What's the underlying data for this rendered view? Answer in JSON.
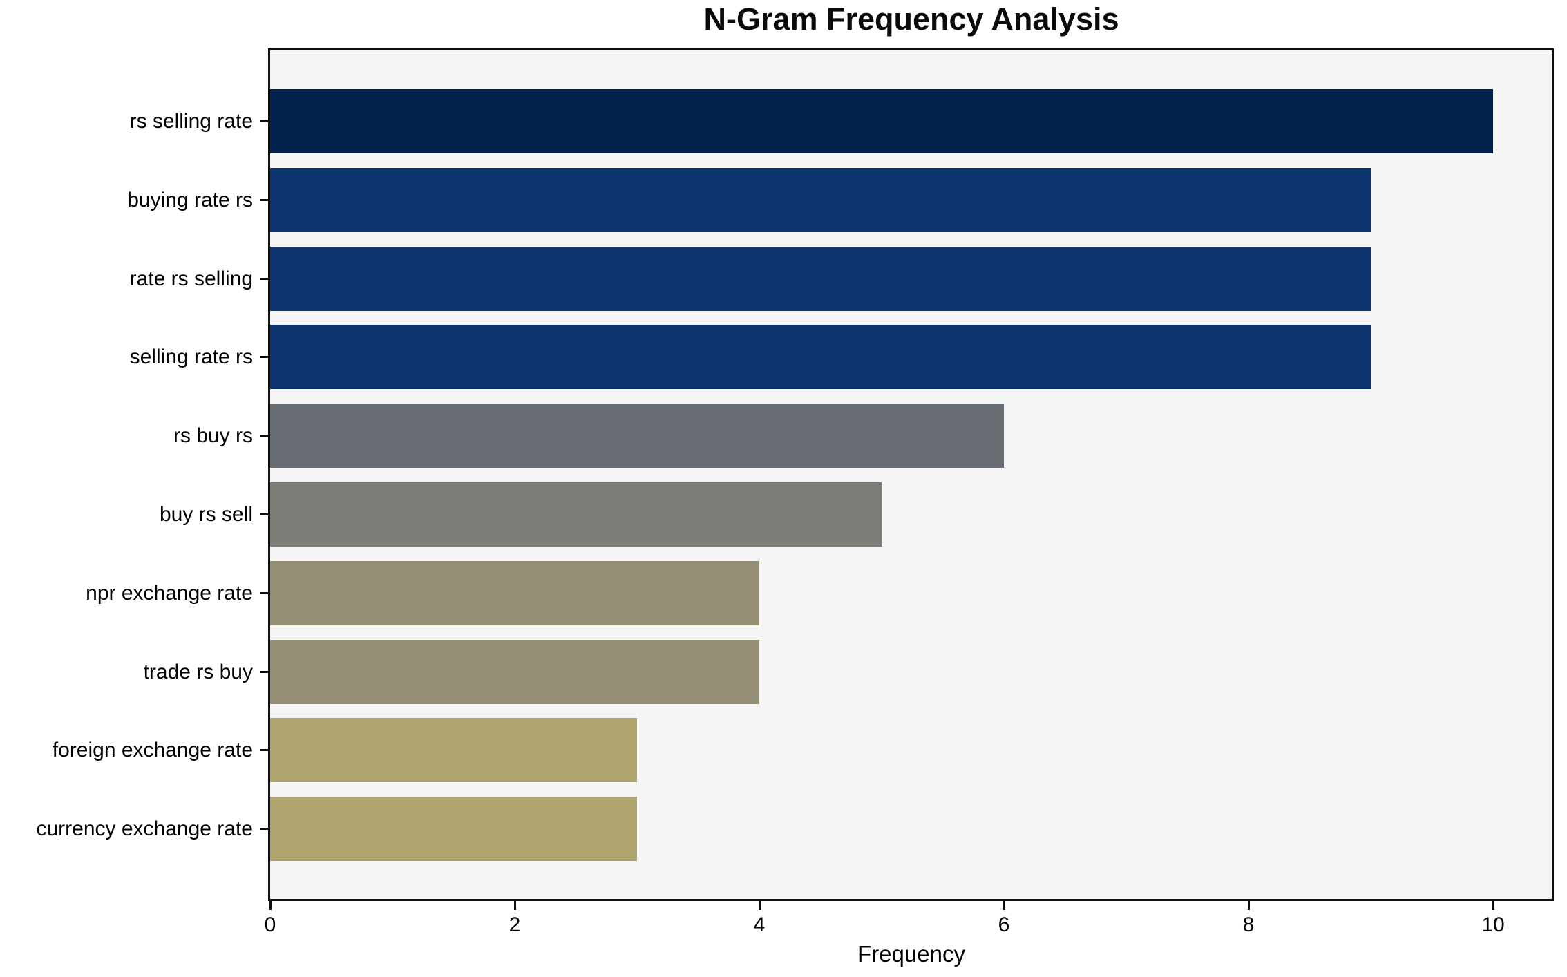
{
  "chart_data": {
    "type": "bar",
    "orientation": "horizontal",
    "title": "N-Gram Frequency Analysis",
    "xlabel": "Frequency",
    "ylabel": "",
    "categories": [
      "rs selling rate",
      "buying rate rs",
      "rate rs selling",
      "selling rate rs",
      "rs buy rs",
      "buy rs sell",
      "npr exchange rate",
      "trade rs buy",
      "foreign exchange rate",
      "currency exchange rate"
    ],
    "values": [
      10,
      9,
      9,
      9,
      6,
      5,
      4,
      4,
      3,
      3
    ],
    "bar_colors": [
      "#02224e",
      "#0e356f",
      "#0e356f",
      "#0e356f",
      "#676b72",
      "#7c7b76",
      "#948e74",
      "#948e74",
      "#b0a56f",
      "#b0a56f"
    ],
    "x_ticks": [
      0,
      2,
      4,
      6,
      8,
      10
    ],
    "xlim": [
      0,
      10.5
    ],
    "grid": false,
    "legend_position": "none",
    "plot_background": "#f5f5f5",
    "figure_background": "#ffffff",
    "spine_color": "#0e0e0e",
    "text_color": "#000000"
  }
}
